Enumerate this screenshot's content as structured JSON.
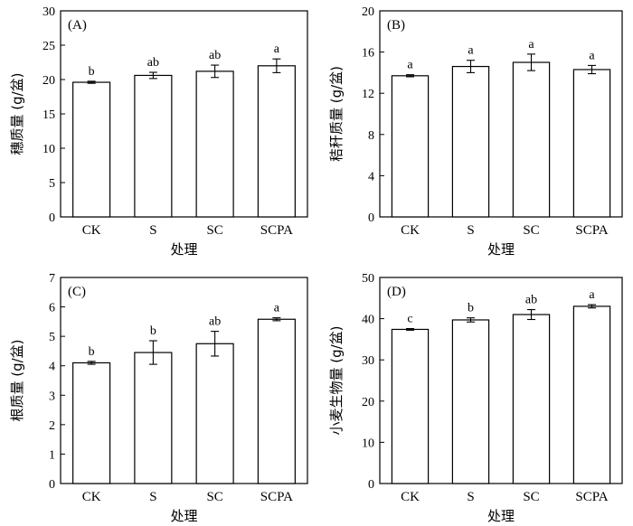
{
  "chart_data": [
    {
      "type": "bar",
      "panel_label": "(A)",
      "categories": [
        "CK",
        "S",
        "SC",
        "SCPA"
      ],
      "values": [
        19.6,
        20.6,
        21.2,
        22.0
      ],
      "errors": [
        0.15,
        0.45,
        0.9,
        1.0
      ],
      "significance": [
        "b",
        "ab",
        "ab",
        "a"
      ],
      "xlabel": "处理",
      "ylabel": "穗质量 (g/盆)",
      "ylim": [
        0,
        30
      ],
      "yticks": [
        0,
        5,
        10,
        15,
        20,
        25,
        30
      ]
    },
    {
      "type": "bar",
      "panel_label": "(B)",
      "categories": [
        "CK",
        "S",
        "SC",
        "SCPA"
      ],
      "values": [
        13.7,
        14.6,
        15.0,
        14.3
      ],
      "errors": [
        0.1,
        0.6,
        0.8,
        0.4
      ],
      "significance": [
        "a",
        "a",
        "a",
        "a"
      ],
      "xlabel": "处理",
      "ylabel": "秸秆质量 (g/盆)",
      "ylim": [
        0,
        20
      ],
      "yticks": [
        0,
        4,
        8,
        12,
        16,
        20
      ]
    },
    {
      "type": "bar",
      "panel_label": "(C)",
      "categories": [
        "CK",
        "S",
        "SC",
        "SCPA"
      ],
      "values": [
        4.1,
        4.45,
        4.75,
        5.58
      ],
      "errors": [
        0.05,
        0.4,
        0.42,
        0.05
      ],
      "significance": [
        "b",
        "b",
        "ab",
        "a"
      ],
      "xlabel": "处理",
      "ylabel": "根质量 (g/盆)",
      "ylim": [
        0,
        7
      ],
      "yticks": [
        0,
        1,
        2,
        3,
        4,
        5,
        6,
        7
      ]
    },
    {
      "type": "bar",
      "panel_label": "(D)",
      "categories": [
        "CK",
        "S",
        "SC",
        "SCPA"
      ],
      "values": [
        37.4,
        39.7,
        41.0,
        43.0
      ],
      "errors": [
        0.2,
        0.5,
        1.2,
        0.4
      ],
      "significance": [
        "c",
        "b",
        "ab",
        "a"
      ],
      "xlabel": "处理",
      "ylabel": "小麦生物量 (g/盆)",
      "ylim": [
        0,
        50
      ],
      "yticks": [
        0,
        10,
        20,
        30,
        40,
        50
      ]
    }
  ]
}
